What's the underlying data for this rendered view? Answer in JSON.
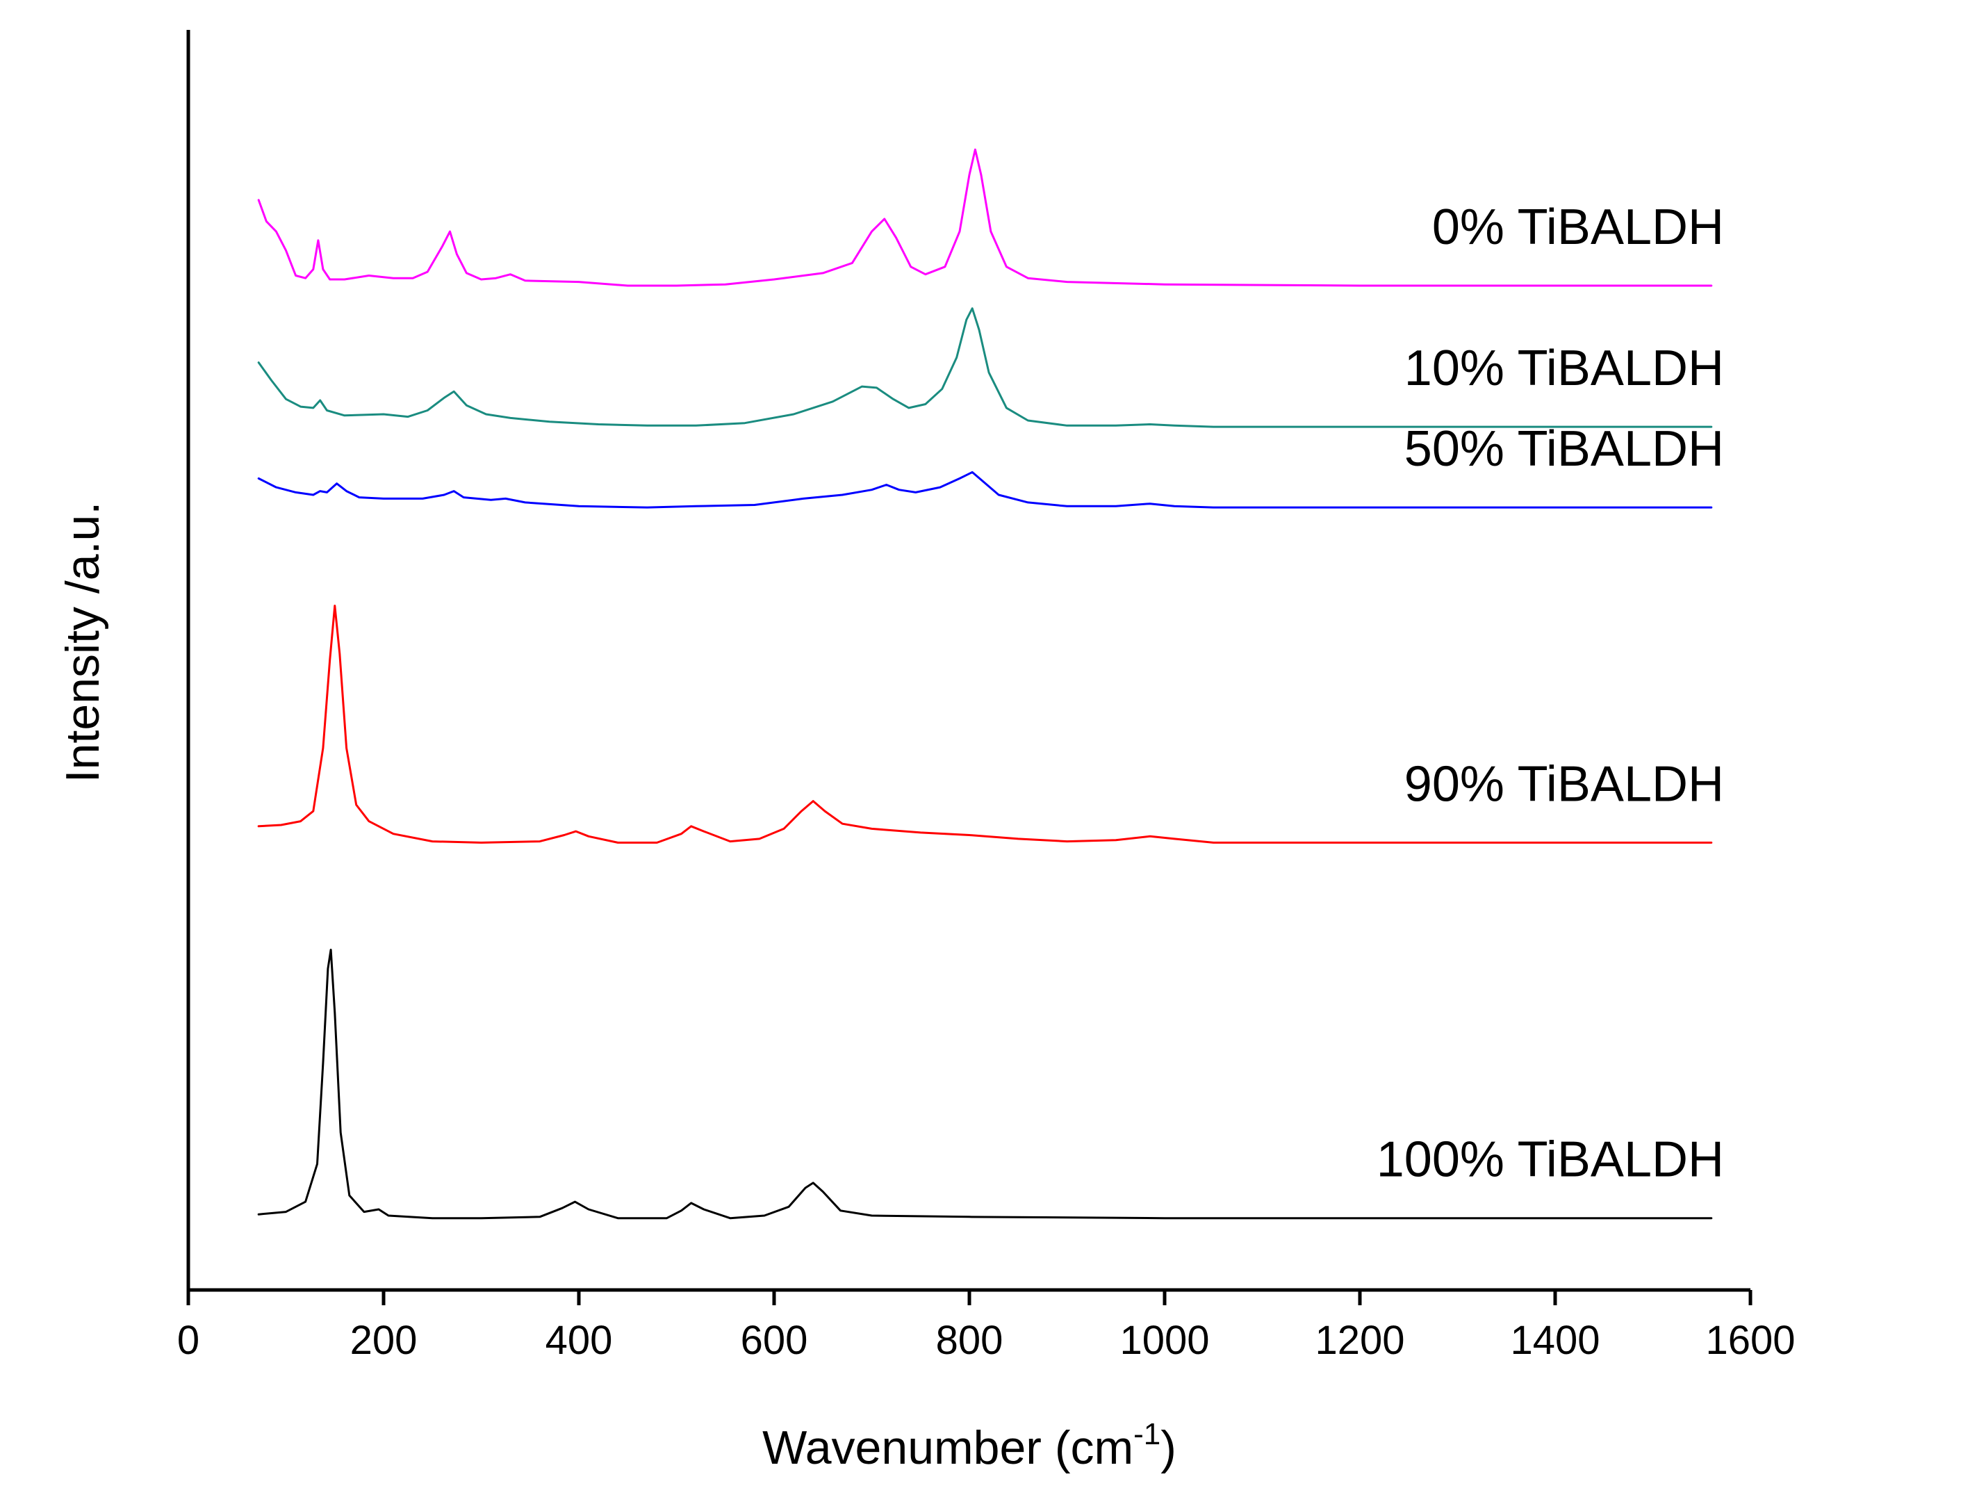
{
  "chart_data": {
    "type": "line",
    "title": "",
    "xlabel": "Wavenumber (cm",
    "xlabel_superscript": "-1",
    "xlabel_close": ")",
    "ylabel": "Intensity /a.u.",
    "xlim": [
      0,
      1600
    ],
    "xticks": [
      0,
      200,
      400,
      600,
      800,
      1000,
      1200,
      1400,
      1600
    ],
    "ylim": [
      0,
      10
    ],
    "grid": false,
    "legend": "inline labels at right end of each trace",
    "series": [
      {
        "name": "0% TiBALDH",
        "color": "#ff00ff",
        "points": [
          [
            72,
            8.65
          ],
          [
            80,
            8.48
          ],
          [
            90,
            8.4
          ],
          [
            100,
            8.25
          ],
          [
            110,
            8.05
          ],
          [
            120,
            8.03
          ],
          [
            128,
            8.1
          ],
          [
            133,
            8.33
          ],
          [
            138,
            8.1
          ],
          [
            145,
            8.02
          ],
          [
            160,
            8.02
          ],
          [
            185,
            8.05
          ],
          [
            210,
            8.03
          ],
          [
            230,
            8.03
          ],
          [
            245,
            8.08
          ],
          [
            260,
            8.28
          ],
          [
            268,
            8.4
          ],
          [
            275,
            8.22
          ],
          [
            285,
            8.07
          ],
          [
            300,
            8.02
          ],
          [
            315,
            8.03
          ],
          [
            330,
            8.06
          ],
          [
            345,
            8.01
          ],
          [
            400,
            8.0
          ],
          [
            450,
            7.97
          ],
          [
            500,
            7.97
          ],
          [
            550,
            7.98
          ],
          [
            600,
            8.02
          ],
          [
            650,
            8.07
          ],
          [
            680,
            8.15
          ],
          [
            700,
            8.4
          ],
          [
            713,
            8.5
          ],
          [
            725,
            8.35
          ],
          [
            740,
            8.12
          ],
          [
            755,
            8.06
          ],
          [
            775,
            8.12
          ],
          [
            790,
            8.4
          ],
          [
            800,
            8.85
          ],
          [
            806,
            9.05
          ],
          [
            812,
            8.85
          ],
          [
            822,
            8.4
          ],
          [
            838,
            8.12
          ],
          [
            860,
            8.03
          ],
          [
            900,
            8.0
          ],
          [
            1000,
            7.98
          ],
          [
            1200,
            7.97
          ],
          [
            1400,
            7.97
          ],
          [
            1560,
            7.97
          ]
        ]
      },
      {
        "name": "10% TiBALDH",
        "color": "#1a8c80",
        "points": [
          [
            72,
            7.36
          ],
          [
            85,
            7.22
          ],
          [
            100,
            7.07
          ],
          [
            115,
            7.01
          ],
          [
            128,
            7.0
          ],
          [
            135,
            7.06
          ],
          [
            142,
            6.98
          ],
          [
            160,
            6.94
          ],
          [
            200,
            6.95
          ],
          [
            225,
            6.93
          ],
          [
            245,
            6.98
          ],
          [
            262,
            7.08
          ],
          [
            272,
            7.13
          ],
          [
            285,
            7.02
          ],
          [
            305,
            6.95
          ],
          [
            330,
            6.92
          ],
          [
            370,
            6.89
          ],
          [
            420,
            6.87
          ],
          [
            470,
            6.86
          ],
          [
            520,
            6.86
          ],
          [
            570,
            6.88
          ],
          [
            620,
            6.95
          ],
          [
            660,
            7.05
          ],
          [
            690,
            7.17
          ],
          [
            705,
            7.16
          ],
          [
            722,
            7.07
          ],
          [
            738,
            7.0
          ],
          [
            755,
            7.03
          ],
          [
            772,
            7.15
          ],
          [
            787,
            7.4
          ],
          [
            797,
            7.7
          ],
          [
            803,
            7.79
          ],
          [
            810,
            7.62
          ],
          [
            820,
            7.28
          ],
          [
            838,
            7.0
          ],
          [
            860,
            6.9
          ],
          [
            900,
            6.86
          ],
          [
            950,
            6.86
          ],
          [
            985,
            6.87
          ],
          [
            1010,
            6.86
          ],
          [
            1050,
            6.85
          ],
          [
            1200,
            6.85
          ],
          [
            1400,
            6.85
          ],
          [
            1560,
            6.85
          ]
        ]
      },
      {
        "name": "50% TiBALDH",
        "color": "#0000ff",
        "points": [
          [
            72,
            6.44
          ],
          [
            90,
            6.37
          ],
          [
            110,
            6.33
          ],
          [
            128,
            6.31
          ],
          [
            135,
            6.34
          ],
          [
            142,
            6.33
          ],
          [
            152,
            6.4
          ],
          [
            162,
            6.34
          ],
          [
            175,
            6.29
          ],
          [
            200,
            6.28
          ],
          [
            240,
            6.28
          ],
          [
            262,
            6.31
          ],
          [
            272,
            6.34
          ],
          [
            282,
            6.29
          ],
          [
            310,
            6.27
          ],
          [
            325,
            6.28
          ],
          [
            345,
            6.25
          ],
          [
            400,
            6.22
          ],
          [
            470,
            6.21
          ],
          [
            520,
            6.22
          ],
          [
            580,
            6.23
          ],
          [
            630,
            6.28
          ],
          [
            670,
            6.31
          ],
          [
            700,
            6.35
          ],
          [
            715,
            6.39
          ],
          [
            728,
            6.35
          ],
          [
            745,
            6.33
          ],
          [
            770,
            6.37
          ],
          [
            790,
            6.44
          ],
          [
            803,
            6.49
          ],
          [
            815,
            6.41
          ],
          [
            830,
            6.31
          ],
          [
            860,
            6.25
          ],
          [
            900,
            6.22
          ],
          [
            950,
            6.22
          ],
          [
            985,
            6.24
          ],
          [
            1010,
            6.22
          ],
          [
            1050,
            6.21
          ],
          [
            1200,
            6.21
          ],
          [
            1400,
            6.21
          ],
          [
            1560,
            6.21
          ]
        ]
      },
      {
        "name": "90% TiBALDH",
        "color": "#ff0000",
        "points": [
          [
            72,
            3.68
          ],
          [
            95,
            3.69
          ],
          [
            115,
            3.72
          ],
          [
            128,
            3.8
          ],
          [
            138,
            4.3
          ],
          [
            145,
            5.0
          ],
          [
            150,
            5.43
          ],
          [
            155,
            5.05
          ],
          [
            162,
            4.3
          ],
          [
            172,
            3.85
          ],
          [
            185,
            3.72
          ],
          [
            210,
            3.62
          ],
          [
            250,
            3.56
          ],
          [
            300,
            3.55
          ],
          [
            360,
            3.56
          ],
          [
            385,
            3.61
          ],
          [
            397,
            3.64
          ],
          [
            410,
            3.6
          ],
          [
            440,
            3.55
          ],
          [
            480,
            3.55
          ],
          [
            505,
            3.62
          ],
          [
            515,
            3.68
          ],
          [
            528,
            3.64
          ],
          [
            555,
            3.56
          ],
          [
            585,
            3.58
          ],
          [
            610,
            3.66
          ],
          [
            628,
            3.8
          ],
          [
            640,
            3.88
          ],
          [
            652,
            3.8
          ],
          [
            670,
            3.7
          ],
          [
            700,
            3.66
          ],
          [
            750,
            3.63
          ],
          [
            800,
            3.61
          ],
          [
            850,
            3.58
          ],
          [
            900,
            3.56
          ],
          [
            950,
            3.57
          ],
          [
            985,
            3.6
          ],
          [
            1010,
            3.58
          ],
          [
            1050,
            3.55
          ],
          [
            1200,
            3.55
          ],
          [
            1400,
            3.55
          ],
          [
            1560,
            3.55
          ]
        ]
      },
      {
        "name": "100% TiBALDH",
        "color": "#000000",
        "points": [
          [
            72,
            0.6
          ],
          [
            100,
            0.62
          ],
          [
            120,
            0.7
          ],
          [
            132,
            1.0
          ],
          [
            138,
            1.8
          ],
          [
            143,
            2.55
          ],
          [
            146,
            2.7
          ],
          [
            150,
            2.2
          ],
          [
            156,
            1.25
          ],
          [
            165,
            0.75
          ],
          [
            180,
            0.62
          ],
          [
            195,
            0.64
          ],
          [
            205,
            0.59
          ],
          [
            250,
            0.57
          ],
          [
            300,
            0.57
          ],
          [
            360,
            0.58
          ],
          [
            383,
            0.65
          ],
          [
            396,
            0.7
          ],
          [
            410,
            0.64
          ],
          [
            440,
            0.57
          ],
          [
            490,
            0.57
          ],
          [
            505,
            0.63
          ],
          [
            515,
            0.69
          ],
          [
            528,
            0.64
          ],
          [
            555,
            0.57
          ],
          [
            590,
            0.59
          ],
          [
            615,
            0.66
          ],
          [
            632,
            0.81
          ],
          [
            640,
            0.85
          ],
          [
            650,
            0.78
          ],
          [
            668,
            0.63
          ],
          [
            700,
            0.59
          ],
          [
            800,
            0.58
          ],
          [
            1000,
            0.57
          ],
          [
            1200,
            0.57
          ],
          [
            1400,
            0.57
          ],
          [
            1560,
            0.57
          ]
        ]
      }
    ]
  }
}
